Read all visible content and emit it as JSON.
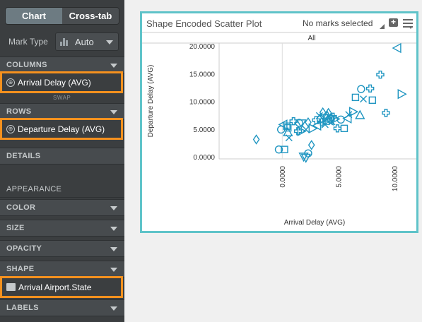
{
  "sidebar": {
    "tabs": [
      "Chart",
      "Cross-tab"
    ],
    "mark_type_label": "Mark Type",
    "mark_type_value": "Auto",
    "columns_label": "COLUMNS",
    "columns_pill": "Arrival Delay (AVG)",
    "swap_label": "SWAP",
    "rows_label": "ROWS",
    "rows_pill": "Departure Delay (AVG)",
    "details_label": "DETAILS",
    "appearance_label": "APPEARANCE",
    "color_label": "COLOR",
    "size_label": "SIZE",
    "opacity_label": "OPACITY",
    "shape_label": "SHAPE",
    "shape_pill": "Arrival Airport.State",
    "labels_label": "LABELS"
  },
  "panel": {
    "title": "Shape Encoded Scatter Plot",
    "selection_status": "No marks selected",
    "add_icon": "plus-box-icon",
    "menu_icon": "menu-icon",
    "accent_color": "#5fc3c9",
    "marker_color": "#1e95c1"
  },
  "chart_data": {
    "type": "scatter",
    "title": "Shape Encoded Scatter Plot",
    "facet_label": "All",
    "xlabel": "Arrival Delay (AVG)",
    "ylabel": "Departure Delay (AVG)",
    "xlim": [
      -5.6,
      11.9
    ],
    "ylim": [
      -0.3,
      20.6
    ],
    "x_ticks": [
      "0.0000",
      "5.0000",
      "10.0000"
    ],
    "x_tick_values": [
      0,
      5,
      10
    ],
    "y_ticks": [
      "0.0000",
      "5.0000",
      "10.0000",
      "15.0000",
      "20.0000"
    ],
    "y_tick_values": [
      0,
      5,
      10,
      15,
      20
    ],
    "grid": false,
    "points": [
      {
        "x": -2.3,
        "y": 3.2,
        "shape": "diamond"
      },
      {
        "x": -0.3,
        "y": 1.4,
        "shape": "circle"
      },
      {
        "x": 0.2,
        "y": 1.4,
        "shape": "square"
      },
      {
        "x": -0.1,
        "y": 5.0,
        "shape": "cross"
      },
      {
        "x": 0.1,
        "y": 5.9,
        "shape": "triangle-left"
      },
      {
        "x": 0.4,
        "y": 5.6,
        "shape": "square"
      },
      {
        "x": 0.5,
        "y": 4.5,
        "shape": "triangle-up"
      },
      {
        "x": 0.6,
        "y": 3.5,
        "shape": "x"
      },
      {
        "x": 0.5,
        "y": 5.3,
        "shape": "square"
      },
      {
        "x": 1.0,
        "y": 6.5,
        "shape": "plus"
      },
      {
        "x": 1.5,
        "y": 6.2,
        "shape": "circle"
      },
      {
        "x": 1.7,
        "y": 6.1,
        "shape": "triangle-down"
      },
      {
        "x": 1.4,
        "y": 4.7,
        "shape": "plus"
      },
      {
        "x": 1.7,
        "y": 4.7,
        "shape": "triangle-right"
      },
      {
        "x": 1.9,
        "y": 0.1,
        "shape": "triangle-down"
      },
      {
        "x": 2.1,
        "y": -0.1,
        "shape": "triangle-down"
      },
      {
        "x": 2.3,
        "y": 0.7,
        "shape": "circle"
      },
      {
        "x": 2.1,
        "y": 5.0,
        "shape": "x"
      },
      {
        "x": 2.3,
        "y": 6.3,
        "shape": "diamond"
      },
      {
        "x": 2.6,
        "y": 2.2,
        "shape": "diamond"
      },
      {
        "x": 2.7,
        "y": 5.2,
        "shape": "triangle-right"
      },
      {
        "x": 3.0,
        "y": 6.7,
        "shape": "plus"
      },
      {
        "x": 3.1,
        "y": 5.7,
        "shape": "triangle-left"
      },
      {
        "x": 3.3,
        "y": 7.5,
        "shape": "x"
      },
      {
        "x": 3.4,
        "y": 6.9,
        "shape": "circle"
      },
      {
        "x": 3.5,
        "y": 6.3,
        "shape": "plus"
      },
      {
        "x": 3.6,
        "y": 8.1,
        "shape": "diamond"
      },
      {
        "x": 3.7,
        "y": 7.1,
        "shape": "triangle-down"
      },
      {
        "x": 3.8,
        "y": 5.9,
        "shape": "x"
      },
      {
        "x": 3.9,
        "y": 6.5,
        "shape": "square"
      },
      {
        "x": 4.0,
        "y": 7.5,
        "shape": "triangle-up"
      },
      {
        "x": 4.1,
        "y": 8.0,
        "shape": "diamond"
      },
      {
        "x": 4.2,
        "y": 6.6,
        "shape": "triangle-left"
      },
      {
        "x": 4.3,
        "y": 7.0,
        "shape": "circle"
      },
      {
        "x": 4.4,
        "y": 6.4,
        "shape": "x"
      },
      {
        "x": 4.5,
        "y": 7.3,
        "shape": "plus"
      },
      {
        "x": 4.7,
        "y": 6.9,
        "shape": "triangle-right"
      },
      {
        "x": 4.9,
        "y": 5.2,
        "shape": "plus"
      },
      {
        "x": 5.2,
        "y": 6.8,
        "shape": "circle"
      },
      {
        "x": 5.5,
        "y": 5.2,
        "shape": "square"
      },
      {
        "x": 5.8,
        "y": 7.0,
        "shape": "triangle-left"
      },
      {
        "x": 5.9,
        "y": 7.7,
        "shape": "x"
      },
      {
        "x": 6.3,
        "y": 8.2,
        "shape": "triangle-right"
      },
      {
        "x": 6.5,
        "y": 10.8,
        "shape": "square"
      },
      {
        "x": 6.9,
        "y": 7.6,
        "shape": "triangle-up"
      },
      {
        "x": 7.0,
        "y": 12.3,
        "shape": "circle"
      },
      {
        "x": 7.2,
        "y": 10.5,
        "shape": "x"
      },
      {
        "x": 7.8,
        "y": 12.4,
        "shape": "plus"
      },
      {
        "x": 8.0,
        "y": 10.3,
        "shape": "square"
      },
      {
        "x": 8.7,
        "y": 14.9,
        "shape": "plus"
      },
      {
        "x": 9.2,
        "y": 8.0,
        "shape": "plus"
      },
      {
        "x": 10.2,
        "y": 19.7,
        "shape": "triangle-left"
      },
      {
        "x": 10.6,
        "y": 11.4,
        "shape": "triangle-right"
      }
    ]
  }
}
